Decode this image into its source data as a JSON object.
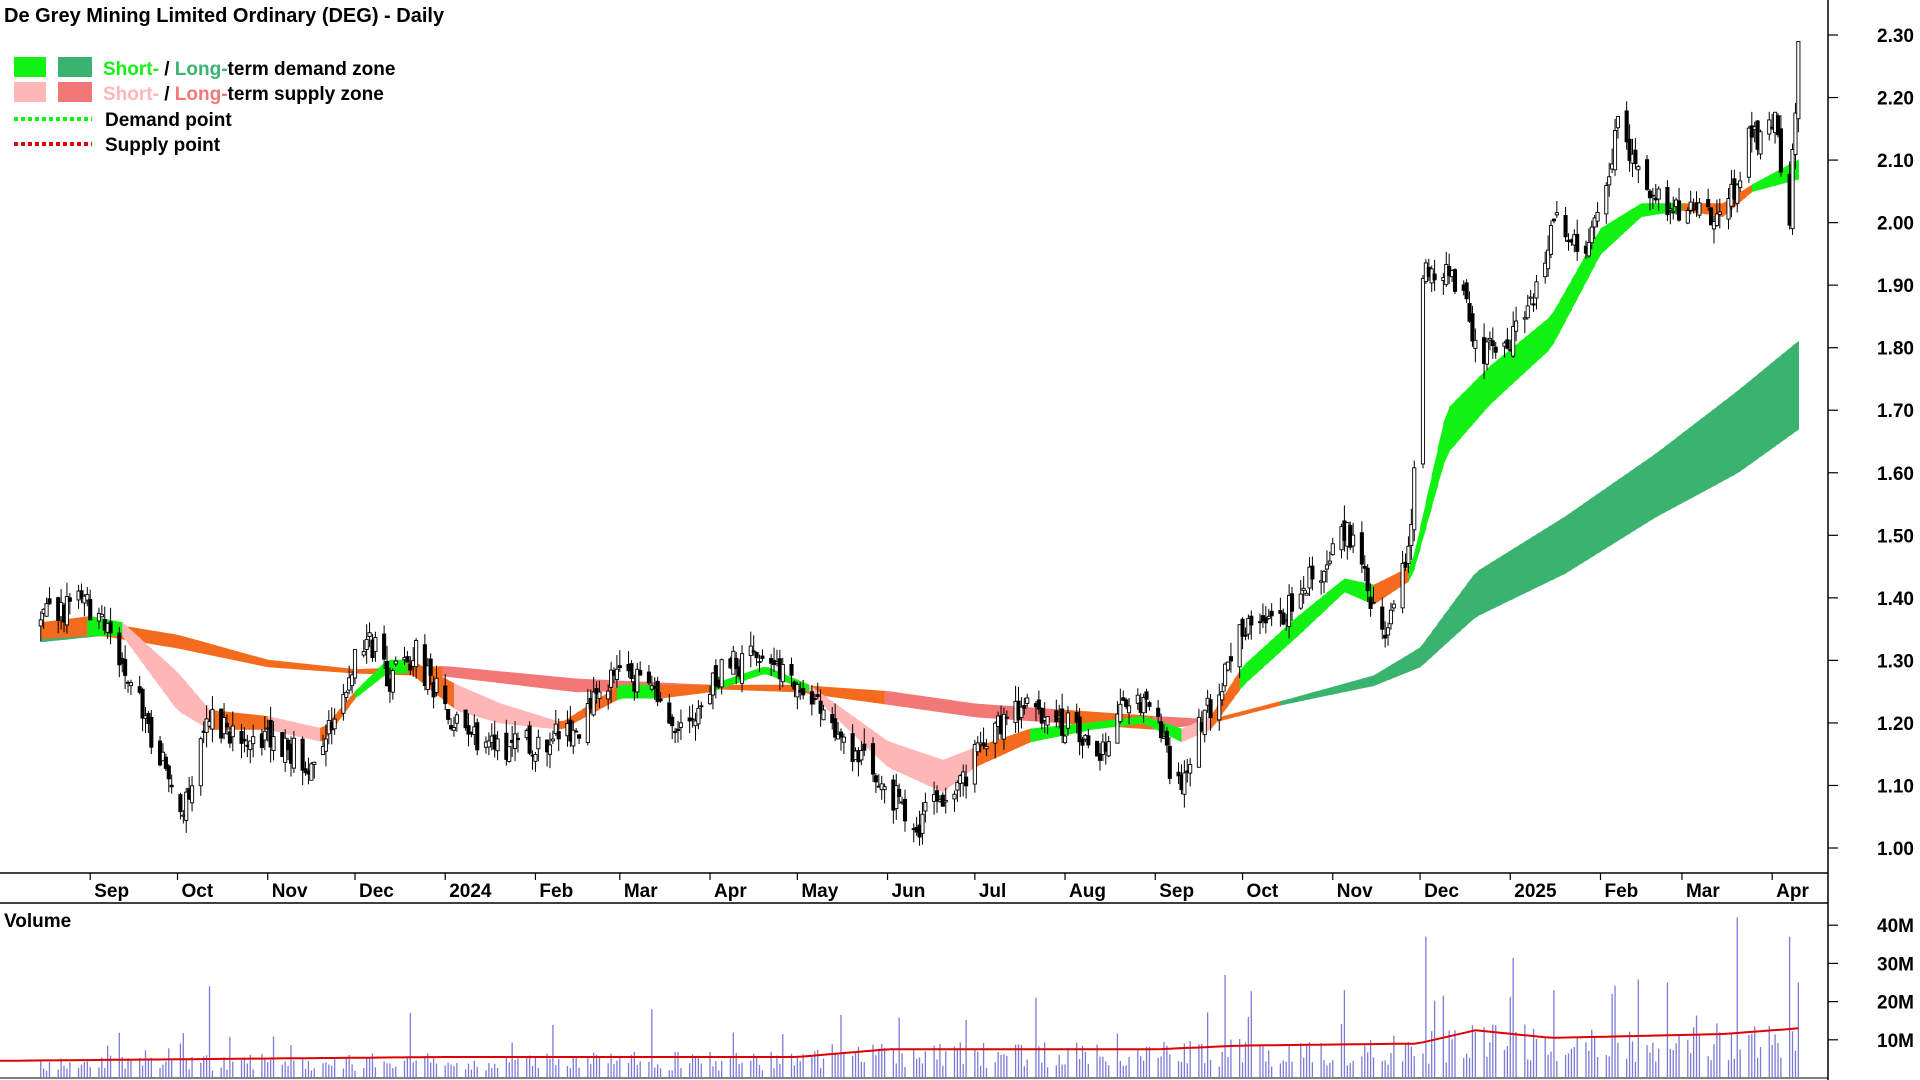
{
  "chart_title": "De Grey Mining Limited Ordinary (DEG) - Daily",
  "legend": {
    "demand_zone": {
      "short": "Short-",
      "sep": " / ",
      "long": "Long-",
      "rest": "term demand zone"
    },
    "supply_zone": {
      "short": "Short-",
      "sep": " / ",
      "long": "Long-",
      "rest": "term supply zone"
    },
    "demand_point": "Demand point",
    "supply_point": "Supply point"
  },
  "colors": {
    "short_demand": "#12f212",
    "long_demand": "#3ab36e",
    "short_supply": "#ffb6b6",
    "long_supply": "#f27878",
    "orange_zone": "#f56b1e",
    "demand_point": "#12f212",
    "supply_point": "#e00000",
    "volume_bar": "#7b7bd6",
    "volume_avg": "#e00000",
    "volume_label": "#6e6ed8"
  },
  "chart_data": {
    "type": "candlestick",
    "title": "De Grey Mining Limited Ordinary (DEG) - Daily",
    "price_axis": {
      "ticks": [
        "1.00",
        "1.10",
        "1.20",
        "1.30",
        "1.40",
        "1.50",
        "1.60",
        "1.70",
        "1.80",
        "1.90",
        "2.00",
        "2.10",
        "2.20",
        "2.30"
      ],
      "range": [
        0.95,
        2.35
      ]
    },
    "x_axis": {
      "ticks": [
        "Sep",
        "Oct",
        "Nov",
        "Dec",
        "2024",
        "Feb",
        "Mar",
        "Apr",
        "May",
        "Jun",
        "Jul",
        "Aug",
        "Sep",
        "Oct",
        "Nov",
        "Dec",
        "2025",
        "Feb",
        "Mar",
        "Apr"
      ],
      "range": [
        "2023-08",
        "2025-04"
      ]
    },
    "price_path": [
      {
        "d": "2023-08-15",
        "v": 1.36
      },
      {
        "d": "2023-08-28",
        "v": 1.4
      },
      {
        "d": "2023-09-08",
        "v": 1.34
      },
      {
        "d": "2023-09-25",
        "v": 1.15
      },
      {
        "d": "2023-10-03",
        "v": 1.07
      },
      {
        "d": "2023-10-12",
        "v": 1.2
      },
      {
        "d": "2023-10-30",
        "v": 1.18
      },
      {
        "d": "2023-11-15",
        "v": 1.14
      },
      {
        "d": "2023-11-27",
        "v": 1.24
      },
      {
        "d": "2023-12-05",
        "v": 1.35
      },
      {
        "d": "2023-12-12",
        "v": 1.27
      },
      {
        "d": "2023-12-22",
        "v": 1.31
      },
      {
        "d": "2024-01-05",
        "v": 1.19
      },
      {
        "d": "2024-01-25",
        "v": 1.16
      },
      {
        "d": "2024-02-15",
        "v": 1.19
      },
      {
        "d": "2024-03-01",
        "v": 1.29
      },
      {
        "d": "2024-03-12",
        "v": 1.24
      },
      {
        "d": "2024-03-25",
        "v": 1.19
      },
      {
        "d": "2024-04-05",
        "v": 1.28
      },
      {
        "d": "2024-04-18",
        "v": 1.32
      },
      {
        "d": "2024-05-01",
        "v": 1.27
      },
      {
        "d": "2024-05-15",
        "v": 1.17
      },
      {
        "d": "2024-06-01",
        "v": 1.1
      },
      {
        "d": "2024-06-10",
        "v": 1.03
      },
      {
        "d": "2024-06-25",
        "v": 1.1
      },
      {
        "d": "2024-07-08",
        "v": 1.2
      },
      {
        "d": "2024-07-20",
        "v": 1.22
      },
      {
        "d": "2024-08-05",
        "v": 1.19
      },
      {
        "d": "2024-08-12",
        "v": 1.13
      },
      {
        "d": "2024-08-22",
        "v": 1.24
      },
      {
        "d": "2024-09-01",
        "v": 1.22
      },
      {
        "d": "2024-09-08",
        "v": 1.08
      },
      {
        "d": "2024-09-18",
        "v": 1.21
      },
      {
        "d": "2024-10-01",
        "v": 1.35
      },
      {
        "d": "2024-10-15",
        "v": 1.38
      },
      {
        "d": "2024-10-28",
        "v": 1.45
      },
      {
        "d": "2024-11-06",
        "v": 1.52
      },
      {
        "d": "2024-11-18",
        "v": 1.34
      },
      {
        "d": "2024-11-28",
        "v": 1.5
      },
      {
        "d": "2024-12-02",
        "v": 1.92
      },
      {
        "d": "2024-12-12",
        "v": 1.93
      },
      {
        "d": "2024-12-22",
        "v": 1.78
      },
      {
        "d": "2025-01-05",
        "v": 1.83
      },
      {
        "d": "2025-01-16",
        "v": 2.0
      },
      {
        "d": "2025-01-27",
        "v": 1.96
      },
      {
        "d": "2025-02-07",
        "v": 2.15
      },
      {
        "d": "2025-02-20",
        "v": 2.04
      },
      {
        "d": "2025-03-03",
        "v": 2.02
      },
      {
        "d": "2025-03-15",
        "v": 2.0
      },
      {
        "d": "2025-03-24",
        "v": 2.13
      },
      {
        "d": "2025-04-02",
        "v": 2.16
      },
      {
        "d": "2025-04-07",
        "v": 2.02
      },
      {
        "d": "2025-04-10",
        "v": 2.27
      }
    ],
    "short_band": [
      {
        "d": "2023-08-15",
        "lo": 1.335,
        "hi": 1.36,
        "z": "orange"
      },
      {
        "d": "2023-09-01",
        "lo": 1.34,
        "hi": 1.37,
        "z": "green"
      },
      {
        "d": "2023-09-12",
        "lo": 1.34,
        "hi": 1.36,
        "z": "pink"
      },
      {
        "d": "2023-10-01",
        "lo": 1.22,
        "hi": 1.28,
        "z": "pink"
      },
      {
        "d": "2023-10-12",
        "lo": 1.19,
        "hi": 1.22,
        "z": "orange"
      },
      {
        "d": "2023-11-01",
        "lo": 1.19,
        "hi": 1.21,
        "z": "pink"
      },
      {
        "d": "2023-11-20",
        "lo": 1.17,
        "hi": 1.19,
        "z": "orange"
      },
      {
        "d": "2023-12-01",
        "lo": 1.24,
        "hi": 1.25,
        "z": "green"
      },
      {
        "d": "2023-12-12",
        "lo": 1.28,
        "hi": 1.3,
        "z": "green"
      },
      {
        "d": "2023-12-20",
        "lo": 1.28,
        "hi": 1.3,
        "z": "orange"
      },
      {
        "d": "2024-01-05",
        "lo": 1.22,
        "hi": 1.26,
        "z": "pink"
      },
      {
        "d": "2024-01-20",
        "lo": 1.2,
        "hi": 1.23,
        "z": "pink"
      },
      {
        "d": "2024-02-10",
        "lo": 1.19,
        "hi": 1.2,
        "z": "orange"
      },
      {
        "d": "2024-03-01",
        "lo": 1.24,
        "hi": 1.26,
        "z": "green"
      },
      {
        "d": "2024-03-15",
        "lo": 1.24,
        "hi": 1.26,
        "z": "orange"
      },
      {
        "d": "2024-04-01",
        "lo": 1.25,
        "hi": 1.26,
        "z": "green"
      },
      {
        "d": "2024-04-20",
        "lo": 1.28,
        "hi": 1.29,
        "z": "green"
      },
      {
        "d": "2024-05-05",
        "lo": 1.25,
        "hi": 1.26,
        "z": "pink"
      },
      {
        "d": "2024-06-01",
        "lo": 1.13,
        "hi": 1.17,
        "z": "pink"
      },
      {
        "d": "2024-06-20",
        "lo": 1.09,
        "hi": 1.14,
        "z": "pink"
      },
      {
        "d": "2024-07-01",
        "lo": 1.13,
        "hi": 1.16,
        "z": "orange"
      },
      {
        "d": "2024-07-20",
        "lo": 1.17,
        "hi": 1.19,
        "z": "green"
      },
      {
        "d": "2024-08-10",
        "lo": 1.19,
        "hi": 1.2,
        "z": "green"
      },
      {
        "d": "2024-08-28",
        "lo": 1.2,
        "hi": 1.21,
        "z": "green"
      },
      {
        "d": "2024-09-10",
        "lo": 1.17,
        "hi": 1.19,
        "z": "pink"
      },
      {
        "d": "2024-09-20",
        "lo": 1.19,
        "hi": 1.21,
        "z": "orange"
      },
      {
        "d": "2024-10-01",
        "lo": 1.26,
        "hi": 1.29,
        "z": "green"
      },
      {
        "d": "2024-10-20",
        "lo": 1.34,
        "hi": 1.37,
        "z": "green"
      },
      {
        "d": "2024-11-05",
        "lo": 1.41,
        "hi": 1.43,
        "z": "green"
      },
      {
        "d": "2024-11-15",
        "lo": 1.39,
        "hi": 1.42,
        "z": "orange"
      },
      {
        "d": "2024-11-28",
        "lo": 1.43,
        "hi": 1.45,
        "z": "green"
      },
      {
        "d": "2024-12-10",
        "lo": 1.63,
        "hi": 1.7,
        "z": "green"
      },
      {
        "d": "2024-12-25",
        "lo": 1.71,
        "hi": 1.77,
        "z": "green"
      },
      {
        "d": "2025-01-15",
        "lo": 1.8,
        "hi": 1.85,
        "z": "green"
      },
      {
        "d": "2025-02-01",
        "lo": 1.95,
        "hi": 1.99,
        "z": "green"
      },
      {
        "d": "2025-02-15",
        "lo": 2.01,
        "hi": 2.03,
        "z": "green"
      },
      {
        "d": "2025-03-01",
        "lo": 2.02,
        "hi": 2.03,
        "z": "orange"
      },
      {
        "d": "2025-03-15",
        "lo": 2.01,
        "hi": 2.03,
        "z": "orange"
      },
      {
        "d": "2025-03-25",
        "lo": 2.05,
        "hi": 2.06,
        "z": "green"
      },
      {
        "d": "2025-04-10",
        "lo": 2.07,
        "hi": 2.1,
        "z": "green"
      }
    ],
    "long_band": [
      {
        "d": "2023-08-15",
        "lo": 1.33,
        "hi": 1.35,
        "z": "green"
      },
      {
        "d": "2023-09-05",
        "lo": 1.34,
        "hi": 1.36,
        "z": "orange"
      },
      {
        "d": "2023-10-01",
        "lo": 1.32,
        "hi": 1.34,
        "z": "orange"
      },
      {
        "d": "2023-11-01",
        "lo": 1.29,
        "hi": 1.3,
        "z": "orange"
      },
      {
        "d": "2023-12-01",
        "lo": 1.28,
        "hi": 1.285,
        "z": "orange"
      },
      {
        "d": "2024-01-01",
        "lo": 1.275,
        "hi": 1.29,
        "z": "salmon"
      },
      {
        "d": "2024-02-15",
        "lo": 1.25,
        "hi": 1.27,
        "z": "salmon"
      },
      {
        "d": "2024-04-01",
        "lo": 1.255,
        "hi": 1.26,
        "z": "orange"
      },
      {
        "d": "2024-05-01",
        "lo": 1.25,
        "hi": 1.26,
        "z": "orange"
      },
      {
        "d": "2024-06-01",
        "lo": 1.23,
        "hi": 1.25,
        "z": "salmon"
      },
      {
        "d": "2024-07-01",
        "lo": 1.21,
        "hi": 1.23,
        "z": "salmon"
      },
      {
        "d": "2024-08-01",
        "lo": 1.2,
        "hi": 1.22,
        "z": "orange"
      },
      {
        "d": "2024-09-01",
        "lo": 1.19,
        "hi": 1.21,
        "z": "salmon"
      },
      {
        "d": "2024-09-20",
        "lo": 1.2,
        "hi": 1.205,
        "z": "orange"
      },
      {
        "d": "2024-10-15",
        "lo": 1.23,
        "hi": 1.235,
        "z": "green"
      },
      {
        "d": "2024-11-15",
        "lo": 1.26,
        "hi": 1.275,
        "z": "green"
      },
      {
        "d": "2024-12-01",
        "lo": 1.29,
        "hi": 1.32,
        "z": "green"
      },
      {
        "d": "2024-12-20",
        "lo": 1.37,
        "hi": 1.44,
        "z": "green"
      },
      {
        "d": "2025-01-20",
        "lo": 1.44,
        "hi": 1.53,
        "z": "green"
      },
      {
        "d": "2025-02-20",
        "lo": 1.53,
        "hi": 1.63,
        "z": "green"
      },
      {
        "d": "2025-03-20",
        "lo": 1.6,
        "hi": 1.73,
        "z": "green"
      },
      {
        "d": "2025-04-10",
        "lo": 1.67,
        "hi": 1.81,
        "z": "green"
      }
    ],
    "volume": {
      "label": "Volume",
      "ticks": [
        "10M",
        "20M",
        "30M",
        "40M"
      ],
      "range": [
        0,
        43
      ],
      "spikes": [
        {
          "d": "2023-10-12",
          "v": 24
        },
        {
          "d": "2023-12-20",
          "v": 17
        },
        {
          "d": "2024-03-12",
          "v": 18
        },
        {
          "d": "2024-05-05",
          "v": 22
        },
        {
          "d": "2024-06-08",
          "v": 28
        },
        {
          "d": "2024-07-22",
          "v": 21
        },
        {
          "d": "2024-09-25",
          "v": 27
        },
        {
          "d": "2024-11-05",
          "v": 23
        },
        {
          "d": "2024-12-01",
          "v": 40
        },
        {
          "d": "2024-12-03",
          "v": 37
        },
        {
          "d": "2025-01-16",
          "v": 23
        },
        {
          "d": "2025-02-05",
          "v": 22
        },
        {
          "d": "2025-03-20",
          "v": 42
        },
        {
          "d": "2025-04-07",
          "v": 37
        },
        {
          "d": "2025-04-10",
          "v": 25
        }
      ],
      "average": [
        {
          "d": "2023-08-01",
          "v": 4.5
        },
        {
          "d": "2024-01-01",
          "v": 5.5
        },
        {
          "d": "2024-05-01",
          "v": 5.5
        },
        {
          "d": "2024-06-01",
          "v": 7.5
        },
        {
          "d": "2024-09-01",
          "v": 7.5
        },
        {
          "d": "2024-10-01",
          "v": 8.5
        },
        {
          "d": "2024-11-30",
          "v": 9.0
        },
        {
          "d": "2024-12-20",
          "v": 12.5
        },
        {
          "d": "2025-01-15",
          "v": 10.5
        },
        {
          "d": "2025-03-15",
          "v": 11.5
        },
        {
          "d": "2025-04-10",
          "v": 13.0
        }
      ]
    }
  }
}
